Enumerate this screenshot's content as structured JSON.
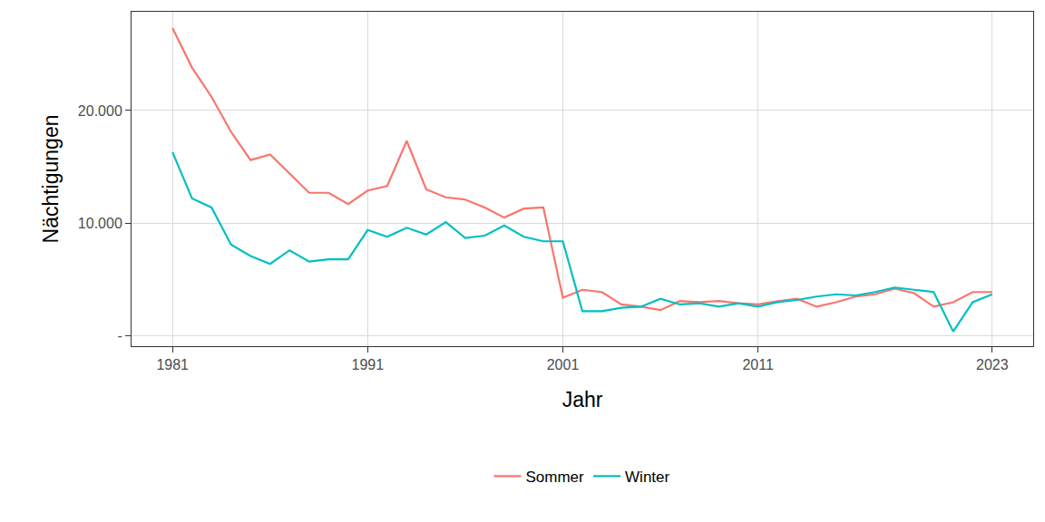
{
  "chart_data": {
    "type": "line",
    "x_label": "Jahr",
    "y_label": "Nächtigungen",
    "x": [
      1981,
      1982,
      1983,
      1984,
      1985,
      1986,
      1987,
      1988,
      1989,
      1990,
      1991,
      1992,
      1993,
      1994,
      1995,
      1996,
      1997,
      1998,
      1999,
      2000,
      2001,
      2002,
      2003,
      2004,
      2005,
      2006,
      2007,
      2008,
      2009,
      2010,
      2011,
      2012,
      2013,
      2014,
      2015,
      2016,
      2017,
      2018,
      2019,
      2020,
      2021,
      2022,
      2023
    ],
    "series": [
      {
        "name": "Sommer",
        "color": "#F8766D",
        "values": [
          27300,
          23800,
          21200,
          18100,
          15600,
          16100,
          14400,
          12700,
          12700,
          11700,
          12900,
          13300,
          17300,
          13000,
          12300,
          12100,
          11400,
          10500,
          11300,
          11400,
          3400,
          4100,
          3900,
          2800,
          2600,
          2300,
          3100,
          3000,
          3100,
          2900,
          2800,
          3100,
          3300,
          2600,
          3000,
          3500,
          3700,
          4200,
          3800,
          2600,
          3000,
          3900,
          3900
        ]
      },
      {
        "name": "Winter",
        "color": "#00BFC4",
        "values": [
          16300,
          12200,
          11400,
          8100,
          7100,
          6400,
          7600,
          6600,
          6800,
          6800,
          9400,
          8800,
          9600,
          9000,
          10100,
          8700,
          8900,
          9800,
          8800,
          8400,
          8400,
          2200,
          2200,
          2500,
          2600,
          3300,
          2800,
          2900,
          2600,
          2900,
          2600,
          3000,
          3200,
          3500,
          3700,
          3600,
          3900,
          4300,
          4100,
          3900,
          400,
          3000,
          3700
        ]
      }
    ],
    "xlim": [
      1978.9,
      2025.1
    ],
    "xticks": [
      1981,
      1991,
      2001,
      2011,
      2023
    ],
    "ylim": [
      -900,
      28750
    ],
    "yticks": [
      {
        "value": 0,
        "label": "-"
      },
      {
        "value": 10000,
        "label": "10.000"
      },
      {
        "value": 20000,
        "label": "20.000"
      }
    ],
    "grid": true,
    "legend": "bottom"
  }
}
